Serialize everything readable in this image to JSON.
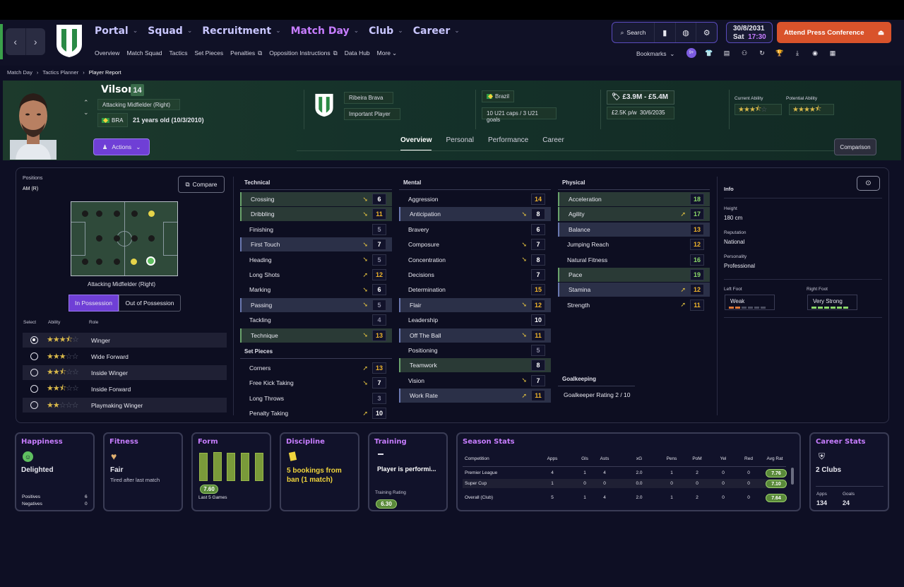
{
  "nav": {
    "menu": [
      {
        "label": "Portal",
        "active": false
      },
      {
        "label": "Squad",
        "active": false
      },
      {
        "label": "Recruitment",
        "active": false
      },
      {
        "label": "Match Day",
        "active": true
      },
      {
        "label": "Club",
        "active": false
      },
      {
        "label": "Career",
        "active": false
      }
    ],
    "submenu": [
      "Overview",
      "Match Squad",
      "Tactics",
      "Set Pieces",
      "Penalties",
      "Opposition Instructions",
      "Data Hub",
      "More"
    ],
    "search_label": "Search",
    "date": "30/8/2031",
    "day": "Sat",
    "time": "17:30",
    "press_button": "Attend Press Conference",
    "bookmarks_label": "Bookmarks",
    "notif_badge": "9+"
  },
  "breadcrumb": [
    "Match Day",
    "Tactics Planner",
    "Player Report"
  ],
  "player": {
    "name": "Vilson",
    "number": "14",
    "position": "Attacking Midfielder (Right)",
    "nation_code": "BRA",
    "age": "21 years old (10/3/2010)",
    "club": "Ribeira Brava",
    "status": "Important Player",
    "nationality": "Brazil",
    "caps": "10 U21 caps / 3 U21 goals",
    "value": "£3.9M - £5.4M",
    "wage": "£2.5K p/w",
    "contract_end": "30/6/2035",
    "current_ability_label": "Current Ability",
    "potential_ability_label": "Potential Ability",
    "current_ability_stars": 3.5,
    "potential_ability_stars": 4.5,
    "actions_label": "Actions"
  },
  "tabs": [
    {
      "label": "Overview",
      "active": true
    },
    {
      "label": "Personal",
      "active": false
    },
    {
      "label": "Performance",
      "active": false
    },
    {
      "label": "Career",
      "active": false
    }
  ],
  "comparison_label": "Comparison",
  "positions": {
    "label": "Positions",
    "value": "AM (R)",
    "compare_label": "Compare",
    "pitch_label": "Attacking Midfielder (Right)",
    "in_possession": "In Possession",
    "out_of_possession": "Out of Possession",
    "headers": {
      "select": "Select",
      "ability": "Ability",
      "role": "Role"
    },
    "roles": [
      {
        "name": "Winger",
        "stars": 3.5,
        "selected": true
      },
      {
        "name": "Wide Forward",
        "stars": 3,
        "selected": false
      },
      {
        "name": "Inside Winger",
        "stars": 2.5,
        "selected": false
      },
      {
        "name": "Inside Forward",
        "stars": 2.5,
        "selected": false
      },
      {
        "name": "Playmaking Winger",
        "stars": 2,
        "selected": false
      }
    ]
  },
  "attributes": {
    "technical_title": "Technical",
    "technical": [
      {
        "name": "Crossing",
        "value": "6",
        "hl": "gr",
        "trend": "down"
      },
      {
        "name": "Dribbling",
        "value": "11",
        "hl": "gr",
        "trend": "down"
      },
      {
        "name": "Finishing",
        "value": "5",
        "hl": "",
        "trend": ""
      },
      {
        "name": "First Touch",
        "value": "7",
        "hl": "bl",
        "trend": "down"
      },
      {
        "name": "Heading",
        "value": "5",
        "hl": "",
        "trend": "down"
      },
      {
        "name": "Long Shots",
        "value": "12",
        "hl": "",
        "trend": "up"
      },
      {
        "name": "Marking",
        "value": "6",
        "hl": "",
        "trend": "down"
      },
      {
        "name": "Passing",
        "value": "5",
        "hl": "bl",
        "trend": "down"
      },
      {
        "name": "Tackling",
        "value": "4",
        "hl": "",
        "trend": ""
      },
      {
        "name": "Technique",
        "value": "13",
        "hl": "gr",
        "trend": "down"
      }
    ],
    "setpieces_title": "Set Pieces",
    "setpieces": [
      {
        "name": "Corners",
        "value": "13",
        "hl": "",
        "trend": "up"
      },
      {
        "name": "Free Kick Taking",
        "value": "7",
        "hl": "",
        "trend": "down"
      },
      {
        "name": "Long Throws",
        "value": "3",
        "hl": "",
        "trend": ""
      },
      {
        "name": "Penalty Taking",
        "value": "10",
        "hl": "",
        "trend": "up"
      }
    ],
    "mental_title": "Mental",
    "mental": [
      {
        "name": "Aggression",
        "value": "14",
        "hl": "",
        "trend": ""
      },
      {
        "name": "Anticipation",
        "value": "8",
        "hl": "bl",
        "trend": "down"
      },
      {
        "name": "Bravery",
        "value": "6",
        "hl": "",
        "trend": ""
      },
      {
        "name": "Composure",
        "value": "7",
        "hl": "",
        "trend": "down"
      },
      {
        "name": "Concentration",
        "value": "8",
        "hl": "",
        "trend": "down"
      },
      {
        "name": "Decisions",
        "value": "7",
        "hl": "",
        "trend": ""
      },
      {
        "name": "Determination",
        "value": "15",
        "hl": "",
        "trend": ""
      },
      {
        "name": "Flair",
        "value": "12",
        "hl": "bl",
        "trend": "down"
      },
      {
        "name": "Leadership",
        "value": "10",
        "hl": "",
        "trend": ""
      },
      {
        "name": "Off The Ball",
        "value": "11",
        "hl": "bl",
        "trend": "down"
      },
      {
        "name": "Positioning",
        "value": "5",
        "hl": "",
        "trend": ""
      },
      {
        "name": "Teamwork",
        "value": "8",
        "hl": "gr",
        "trend": ""
      },
      {
        "name": "Vision",
        "value": "7",
        "hl": "",
        "trend": "down"
      },
      {
        "name": "Work Rate",
        "value": "11",
        "hl": "bl",
        "trend": "up"
      }
    ],
    "physical_title": "Physical",
    "physical": [
      {
        "name": "Acceleration",
        "value": "18",
        "hl": "gr",
        "trend": ""
      },
      {
        "name": "Agility",
        "value": "17",
        "hl": "gr",
        "trend": "up"
      },
      {
        "name": "Balance",
        "value": "13",
        "hl": "bl",
        "trend": ""
      },
      {
        "name": "Jumping Reach",
        "value": "12",
        "hl": "",
        "trend": ""
      },
      {
        "name": "Natural Fitness",
        "value": "16",
        "hl": "",
        "trend": ""
      },
      {
        "name": "Pace",
        "value": "19",
        "hl": "gr",
        "trend": ""
      },
      {
        "name": "Stamina",
        "value": "12",
        "hl": "bl",
        "trend": "up"
      },
      {
        "name": "Strength",
        "value": "11",
        "hl": "",
        "trend": "up"
      }
    ],
    "goalkeeping_title": "Goalkeeping",
    "goalkeeper_rating": "Goalkeeper Rating  2 / 10"
  },
  "info": {
    "title": "Info",
    "height_label": "Height",
    "height": "180 cm",
    "reputation_label": "Reputation",
    "reputation": "National",
    "personality_label": "Personality",
    "personality": "Professional",
    "left_foot_label": "Left Foot",
    "left_foot": "Weak",
    "right_foot_label": "Right Foot",
    "right_foot": "Very Strong",
    "left_foot_level": 2,
    "right_foot_level": 6
  },
  "cards": {
    "happiness": {
      "title": "Happiness",
      "value": "Delighted",
      "positives_label": "Positives",
      "positives": "6",
      "negatives_label": "Negatives",
      "negatives": "0"
    },
    "fitness": {
      "title": "Fitness",
      "value": "Fair",
      "note": "Tired after last match"
    },
    "form": {
      "title": "Form",
      "rating": "7.60",
      "note": "Last 5 Games"
    },
    "discipline": {
      "title": "Discipline",
      "value": "5 bookings from ban (1 match)"
    },
    "training": {
      "title": "Training",
      "value": "Player is performi...",
      "rating_label": "Training Rating",
      "rating": "6.30"
    },
    "season": {
      "title": "Season Stats",
      "headers": [
        "Competition",
        "Apps",
        "Gls",
        "Asts",
        "xG",
        "Pens",
        "PoM",
        "Yel",
        "Red",
        "Avg Rat"
      ],
      "rows": [
        [
          "Premier League",
          "4",
          "1",
          "4",
          "2.0",
          "1",
          "2",
          "0",
          "0",
          "7.76"
        ],
        [
          "Super Cup",
          "1",
          "0",
          "0",
          "0.0",
          "0",
          "0",
          "0",
          "0",
          "7.10"
        ],
        [
          "Overall (Club)",
          "5",
          "1",
          "4",
          "2.0",
          "1",
          "2",
          "0",
          "0",
          "7.64"
        ]
      ]
    },
    "career": {
      "title": "Career Stats",
      "value": "2 Clubs",
      "apps_label": "Apps",
      "apps": "134",
      "goals_label": "Goals",
      "goals": "24"
    }
  },
  "colors": {
    "accent": "#c77dff",
    "press": "#d9532b",
    "header_green": "#1d3a2c",
    "attr_orange": "#f0b52b",
    "attr_green": "#8bd86a"
  }
}
